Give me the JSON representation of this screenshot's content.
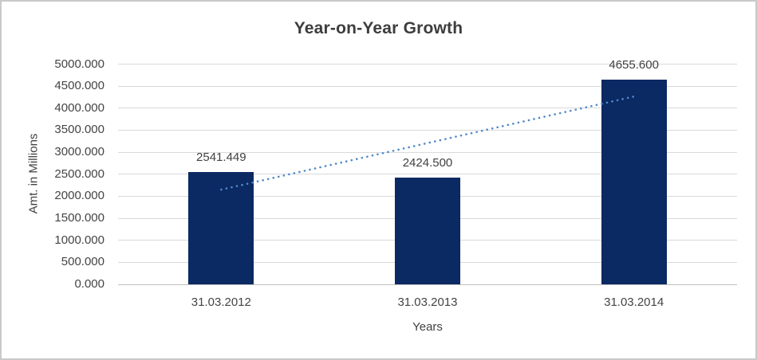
{
  "chart_data": {
    "type": "bar",
    "title": "Year-on-Year Growth",
    "categories": [
      "31.03.2012",
      "31.03.2013",
      "31.03.2014"
    ],
    "values": [
      2541.449,
      2424.5,
      4655.6
    ],
    "data_labels": [
      "2541.449",
      "2424.500",
      "4655.600"
    ],
    "xlabel": "Years",
    "ylabel": "Amt. in Millions",
    "ylim": [
      0,
      5000
    ],
    "ytick_step": 500,
    "ytick_labels": [
      "0.000",
      "500.000",
      "1000.000",
      "1500.000",
      "2000.000",
      "2500.000",
      "3000.000",
      "3500.000",
      "4000.000",
      "4500.000",
      "5000.000"
    ],
    "grid": true,
    "legend_position": "none",
    "trendline": {
      "type": "linear",
      "style": "dotted",
      "endpoint_fit_values": [
        2150.1,
        4264.3
      ],
      "color": "#5089cb"
    },
    "colors": {
      "bar": "#0b2963",
      "gridline": "#d9d9d9",
      "axis_line": "#bfbfbf",
      "text": "#414141",
      "title": "#3d3d3d",
      "frame_border": "#c9c9c9"
    }
  }
}
